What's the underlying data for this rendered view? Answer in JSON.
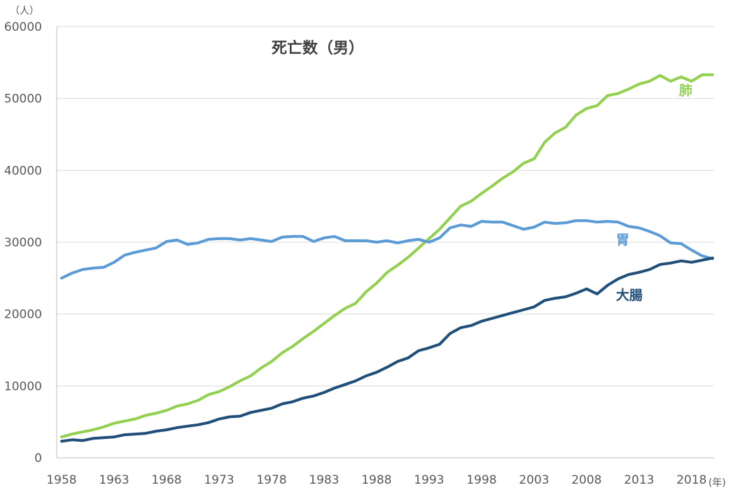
{
  "chart_data": {
    "type": "line",
    "title": "死亡数（男）",
    "y_unit_label": "（人）",
    "x_unit_label": "(年)",
    "ylim": [
      0,
      60000
    ],
    "y_ticks": [
      0,
      10000,
      20000,
      30000,
      40000,
      50000,
      60000
    ],
    "x_ticks": [
      1958,
      1963,
      1968,
      1973,
      1978,
      1983,
      1988,
      1993,
      1998,
      2003,
      2008,
      2013,
      2018
    ],
    "xlim": [
      1958,
      2020
    ],
    "grid": "horizontal",
    "legend": "inline labels",
    "x": [
      1958,
      1959,
      1960,
      1961,
      1962,
      1963,
      1964,
      1965,
      1966,
      1967,
      1968,
      1969,
      1970,
      1971,
      1972,
      1973,
      1974,
      1975,
      1976,
      1977,
      1978,
      1979,
      1980,
      1981,
      1982,
      1983,
      1984,
      1985,
      1986,
      1987,
      1988,
      1989,
      1990,
      1991,
      1992,
      1993,
      1994,
      1995,
      1996,
      1997,
      1998,
      1999,
      2000,
      2001,
      2002,
      2003,
      2004,
      2005,
      2006,
      2007,
      2008,
      2009,
      2010,
      2011,
      2012,
      2013,
      2014,
      2015,
      2016,
      2017,
      2018,
      2019,
      2020
    ],
    "series": [
      {
        "name": "肺",
        "color": "#92d050",
        "values": [
          2900,
          3300,
          3600,
          3900,
          4300,
          4800,
          5100,
          5400,
          5900,
          6200,
          6600,
          7200,
          7500,
          8000,
          8800,
          9200,
          9900,
          10700,
          11400,
          12500,
          13400,
          14600,
          15500,
          16600,
          17600,
          18700,
          19800,
          20800,
          21500,
          23100,
          24300,
          25800,
          26800,
          27900,
          29200,
          30500,
          31800,
          33400,
          35000,
          35700,
          36800,
          37800,
          38900,
          39800,
          41000,
          41600,
          43900,
          45200,
          46000,
          47700,
          48600,
          49000,
          50400,
          50700,
          51300,
          52000,
          52400,
          53200,
          52400,
          53000,
          52400,
          53300,
          53300
        ],
        "label_pos": [
          2016.8,
          50500
        ]
      },
      {
        "name": "胃",
        "color": "#5b9bd5",
        "values": [
          25000,
          25700,
          26200,
          26400,
          26500,
          27200,
          28200,
          28600,
          28900,
          29200,
          30100,
          30300,
          29700,
          29900,
          30400,
          30500,
          30500,
          30300,
          30500,
          30300,
          30100,
          30700,
          30800,
          30800,
          30100,
          30600,
          30800,
          30200,
          30200,
          30200,
          30000,
          30200,
          29900,
          30200,
          30400,
          30000,
          30600,
          32000,
          32400,
          32200,
          32900,
          32800,
          32800,
          32300,
          31800,
          32100,
          32800,
          32600,
          32700,
          33000,
          33000,
          32800,
          32900,
          32800,
          32200,
          32000,
          31500,
          30900,
          29900,
          29800,
          28900,
          28100,
          27700
        ],
        "label_pos": [
          2010.8,
          29700
        ]
      },
      {
        "name": "大腸",
        "color": "#1f4e79",
        "values": [
          2300,
          2500,
          2400,
          2700,
          2800,
          2900,
          3200,
          3300,
          3400,
          3700,
          3900,
          4200,
          4400,
          4600,
          4900,
          5400,
          5700,
          5800,
          6300,
          6600,
          6900,
          7500,
          7800,
          8300,
          8600,
          9100,
          9700,
          10200,
          10700,
          11400,
          11900,
          12600,
          13400,
          13900,
          14900,
          15300,
          15800,
          17300,
          18100,
          18400,
          19000,
          19400,
          19800,
          20200,
          20600,
          21000,
          21900,
          22200,
          22400,
          22900,
          23500,
          22800,
          24000,
          24900,
          25500,
          25800,
          26200,
          26900,
          27100,
          27400,
          27200,
          27500,
          27800
        ],
        "label_pos": [
          2010.8,
          22000
        ]
      }
    ]
  }
}
